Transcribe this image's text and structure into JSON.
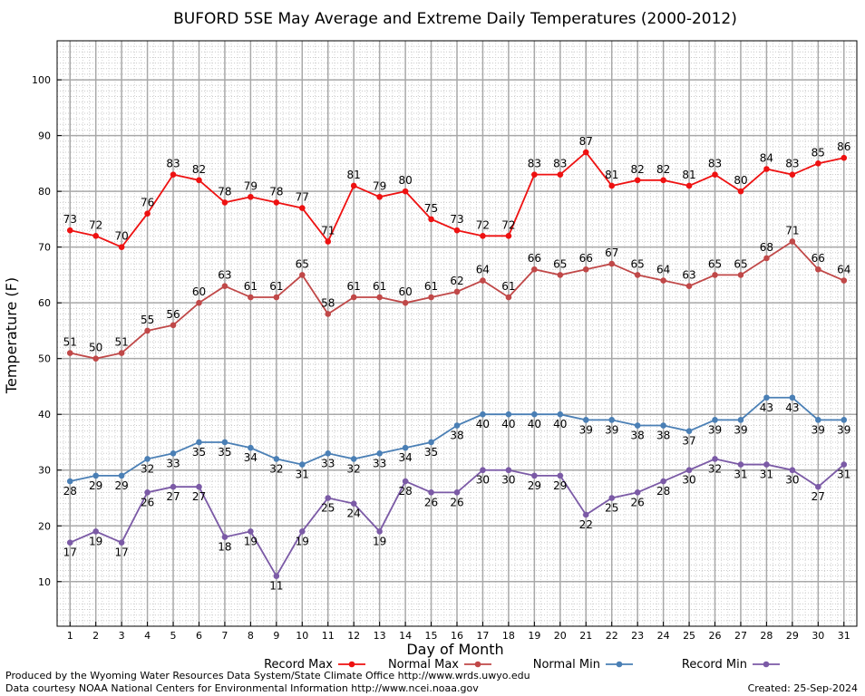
{
  "chart_data": {
    "type": "line",
    "title": "BUFORD 5SE May Average and Extreme Daily Temperatures (2000-2012)",
    "xlabel": "Day of Month",
    "ylabel": "Temperature (F)",
    "xlim": [
      0.5,
      31.5
    ],
    "ylim": [
      2,
      107
    ],
    "yticks": [
      10,
      20,
      30,
      40,
      50,
      60,
      70,
      80,
      90,
      100
    ],
    "x": [
      1,
      2,
      3,
      4,
      5,
      6,
      7,
      8,
      9,
      10,
      11,
      12,
      13,
      14,
      15,
      16,
      17,
      18,
      19,
      20,
      21,
      22,
      23,
      24,
      25,
      26,
      27,
      28,
      29,
      30,
      31
    ],
    "grid": true,
    "legend_position": "bottom",
    "series": [
      {
        "name": "Record Max",
        "color": "#ee1111",
        "label_position": "above",
        "values": [
          73,
          72,
          70,
          76,
          83,
          82,
          78,
          79,
          78,
          77,
          71,
          81,
          79,
          80,
          75,
          73,
          72,
          72,
          83,
          83,
          87,
          81,
          82,
          82,
          81,
          83,
          80,
          84,
          83,
          85,
          86
        ]
      },
      {
        "name": "Normal Max",
        "color": "#c04848",
        "label_position": "above",
        "values": [
          51,
          50,
          51,
          55,
          56,
          60,
          63,
          61,
          61,
          65,
          58,
          61,
          61,
          60,
          61,
          62,
          64,
          61,
          66,
          65,
          66,
          67,
          65,
          64,
          63,
          65,
          65,
          68,
          71,
          66,
          64
        ]
      },
      {
        "name": "Normal Min",
        "color": "#4a7fb5",
        "label_position": "below",
        "values": [
          28,
          29,
          29,
          32,
          33,
          35,
          35,
          34,
          32,
          31,
          33,
          32,
          33,
          34,
          35,
          38,
          40,
          40,
          40,
          40,
          39,
          39,
          38,
          38,
          37,
          39,
          39,
          43,
          43,
          39,
          39
        ]
      },
      {
        "name": "Record Min",
        "color": "#7b5aa6",
        "label_position": "below",
        "values": [
          17,
          19,
          17,
          26,
          27,
          27,
          18,
          19,
          11,
          19,
          25,
          24,
          19,
          28,
          26,
          26,
          30,
          30,
          29,
          29,
          22,
          25,
          26,
          28,
          30,
          32,
          31,
          31,
          30,
          27,
          31
        ]
      }
    ]
  },
  "footer": {
    "produced_by": "Produced by the Wyoming Water Resources Data System/State Climate Office http://www.wrds.uwyo.edu",
    "courtesy": "Data courtesy NOAA National Centers for Environmental Information http://www.ncei.noaa.gov",
    "created": "Created:  25-Sep-2024"
  }
}
